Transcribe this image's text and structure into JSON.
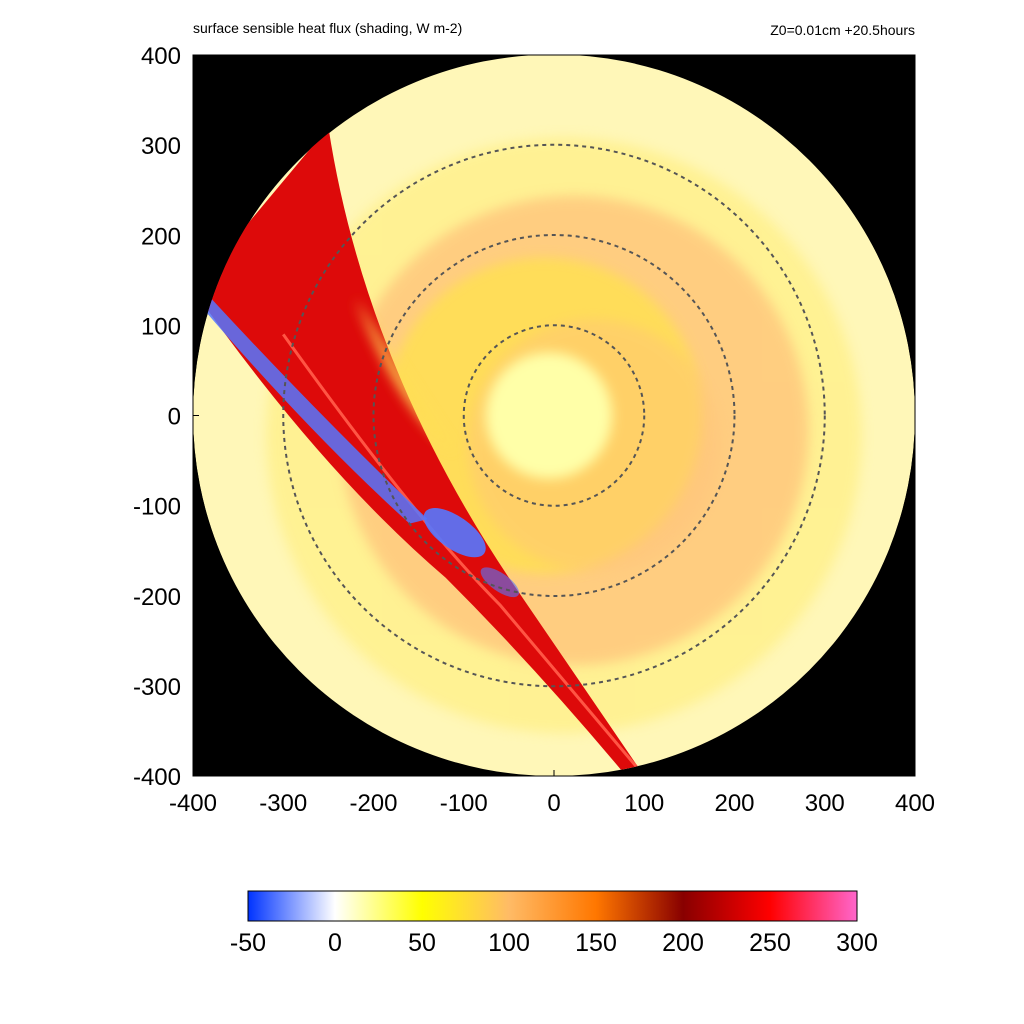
{
  "chart_data": {
    "type": "heatmap",
    "title": "surface sensible heat flux (shading, W m-2)",
    "subtitle": "Z0=0.01cm  +20.5hours",
    "xlabel": "",
    "ylabel": "",
    "xlim": [
      -400,
      400
    ],
    "ylim": [
      -400,
      400
    ],
    "x_ticks": [
      "-400",
      "-300",
      "-200",
      "-100",
      "0",
      "100",
      "200",
      "300",
      "400"
    ],
    "y_ticks": [
      "400",
      "300",
      "200",
      "100",
      "0",
      "-100",
      "-200",
      "-300",
      "-400"
    ],
    "x_tick_values": [
      -400,
      -300,
      -200,
      -100,
      0,
      100,
      200,
      300,
      400
    ],
    "y_tick_values": [
      400,
      300,
      200,
      100,
      0,
      -100,
      -200,
      -300,
      -400
    ],
    "domain_radius": 400,
    "range_rings": [
      100,
      200,
      300
    ],
    "outside_domain_color": "#000000",
    "colorbar": {
      "ticks": [
        "-50",
        "0",
        "50",
        "100",
        "150",
        "200",
        "250",
        "300"
      ],
      "tick_values": [
        -50,
        0,
        50,
        100,
        150,
        200,
        250,
        300
      ],
      "range": [
        -50,
        300
      ],
      "stops": [
        {
          "value": -50,
          "color": "#0033ff"
        },
        {
          "value": 0,
          "color": "#ffffff"
        },
        {
          "value": 50,
          "color": "#ffff00"
        },
        {
          "value": 100,
          "color": "#ffbb66"
        },
        {
          "value": 150,
          "color": "#ff7700"
        },
        {
          "value": 200,
          "color": "#880000"
        },
        {
          "value": 250,
          "color": "#ff0000"
        },
        {
          "value": 300,
          "color": "#ff66cc"
        }
      ]
    },
    "field_regions": [
      {
        "name": "background",
        "value": 22,
        "color": "#fff7b8"
      },
      {
        "name": "core",
        "value": 35,
        "color": "#ffffa8"
      },
      {
        "name": "inner-ring",
        "value": 65,
        "color": "#ffdf55"
      },
      {
        "name": "rainband",
        "value": 110,
        "color": "#ffc27a"
      },
      {
        "name": "outer-ring",
        "value": 50,
        "color": "#fff08a"
      },
      {
        "name": "red-sector",
        "value": 240,
        "color": "#dd0a0a"
      },
      {
        "name": "blue-patches",
        "value": -35,
        "color": "#5577ff"
      }
    ]
  }
}
